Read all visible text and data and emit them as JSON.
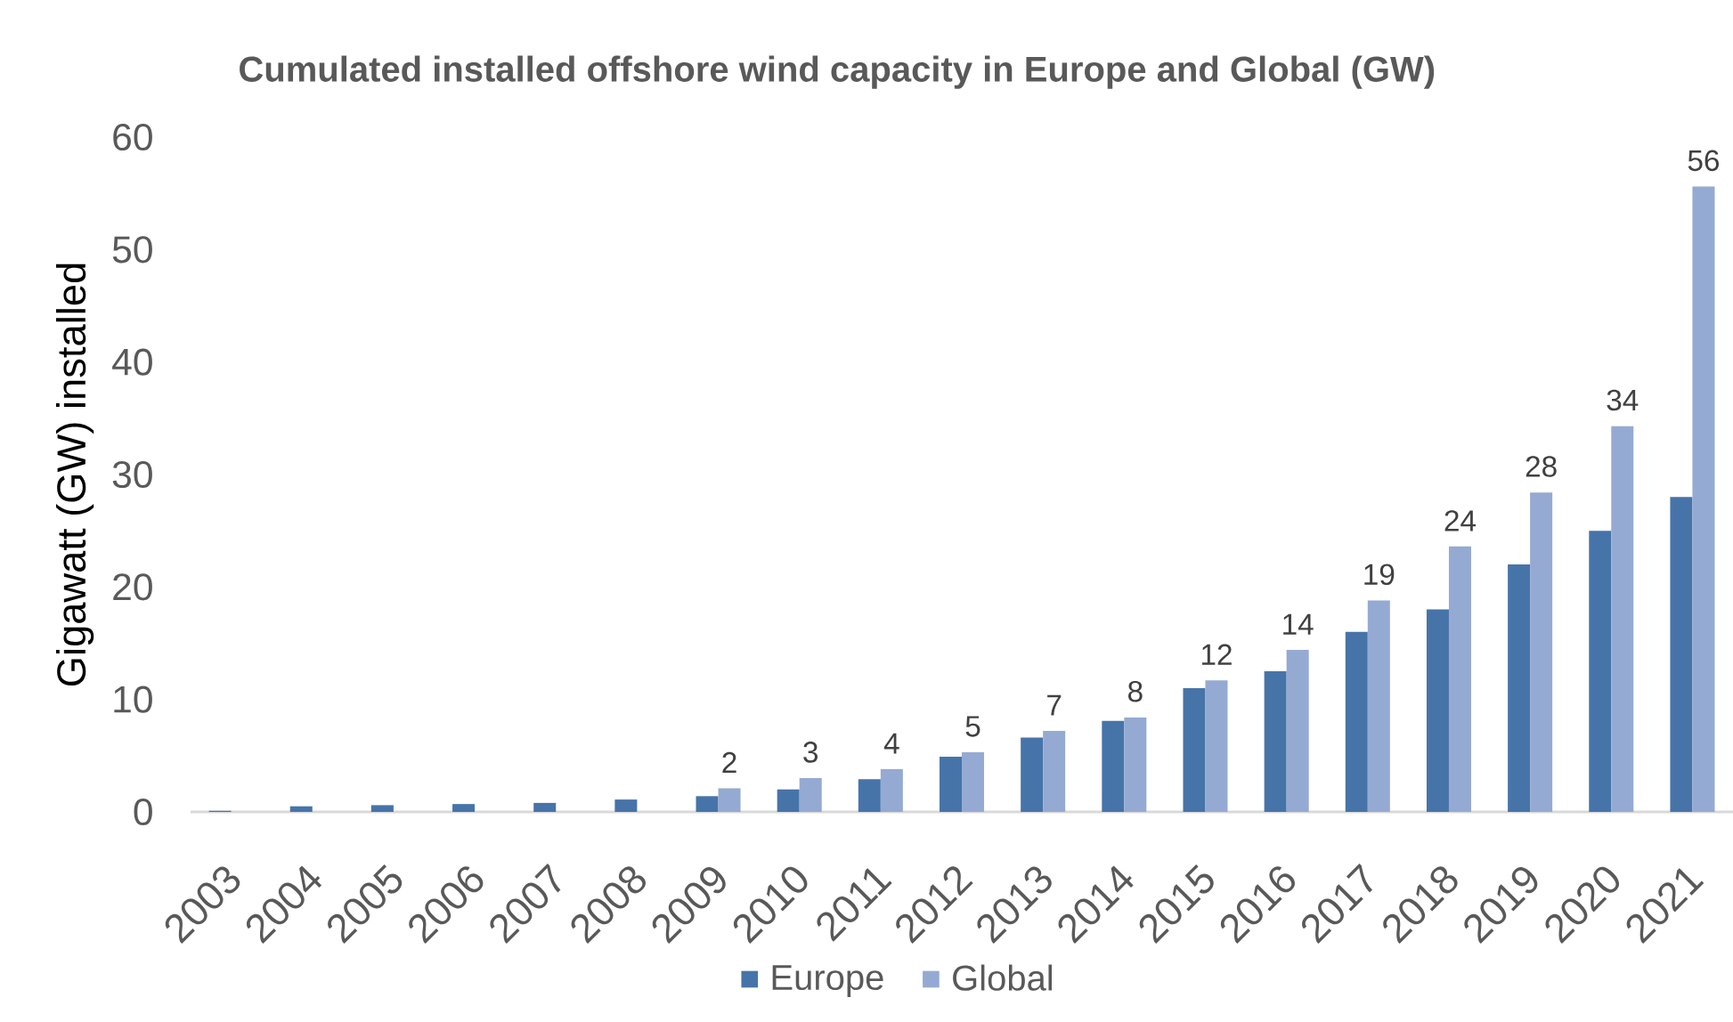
{
  "chart_data": {
    "type": "bar",
    "title": "Cumulated installed offshore wind capacity in Europe and Global (GW)",
    "ylabel": "Gigawatt (GW) installed",
    "categories": [
      "2003",
      "2004",
      "2005",
      "2006",
      "2007",
      "2008",
      "2009",
      "2010",
      "2011",
      "2012",
      "2013",
      "2014",
      "2015",
      "2016",
      "2017",
      "2018",
      "2019",
      "2020",
      "2021"
    ],
    "series": [
      {
        "name": "Europe",
        "color": "#4674a9",
        "values": [
          0.1,
          0.5,
          0.6,
          0.7,
          0.8,
          1.1,
          1.4,
          2.0,
          2.9,
          4.9,
          6.6,
          8.1,
          11.0,
          12.5,
          16.0,
          18.0,
          22.0,
          25.0,
          28.0
        ]
      },
      {
        "name": "Global",
        "color": "#95aad2",
        "values": [
          null,
          null,
          null,
          null,
          null,
          null,
          2.1,
          3.0,
          3.8,
          5.3,
          7.2,
          8.4,
          11.7,
          14.4,
          18.8,
          23.6,
          28.4,
          34.3,
          55.6
        ],
        "value_labels": [
          null,
          null,
          null,
          null,
          null,
          null,
          "2",
          "3",
          "4",
          "5",
          "7",
          "8",
          "12",
          "14",
          "19",
          "24",
          "28",
          "34",
          "56"
        ]
      }
    ],
    "ylim": [
      0,
      60
    ],
    "yticks": [
      0,
      10,
      20,
      30,
      40,
      50,
      60
    ],
    "legend": "bottom"
  }
}
